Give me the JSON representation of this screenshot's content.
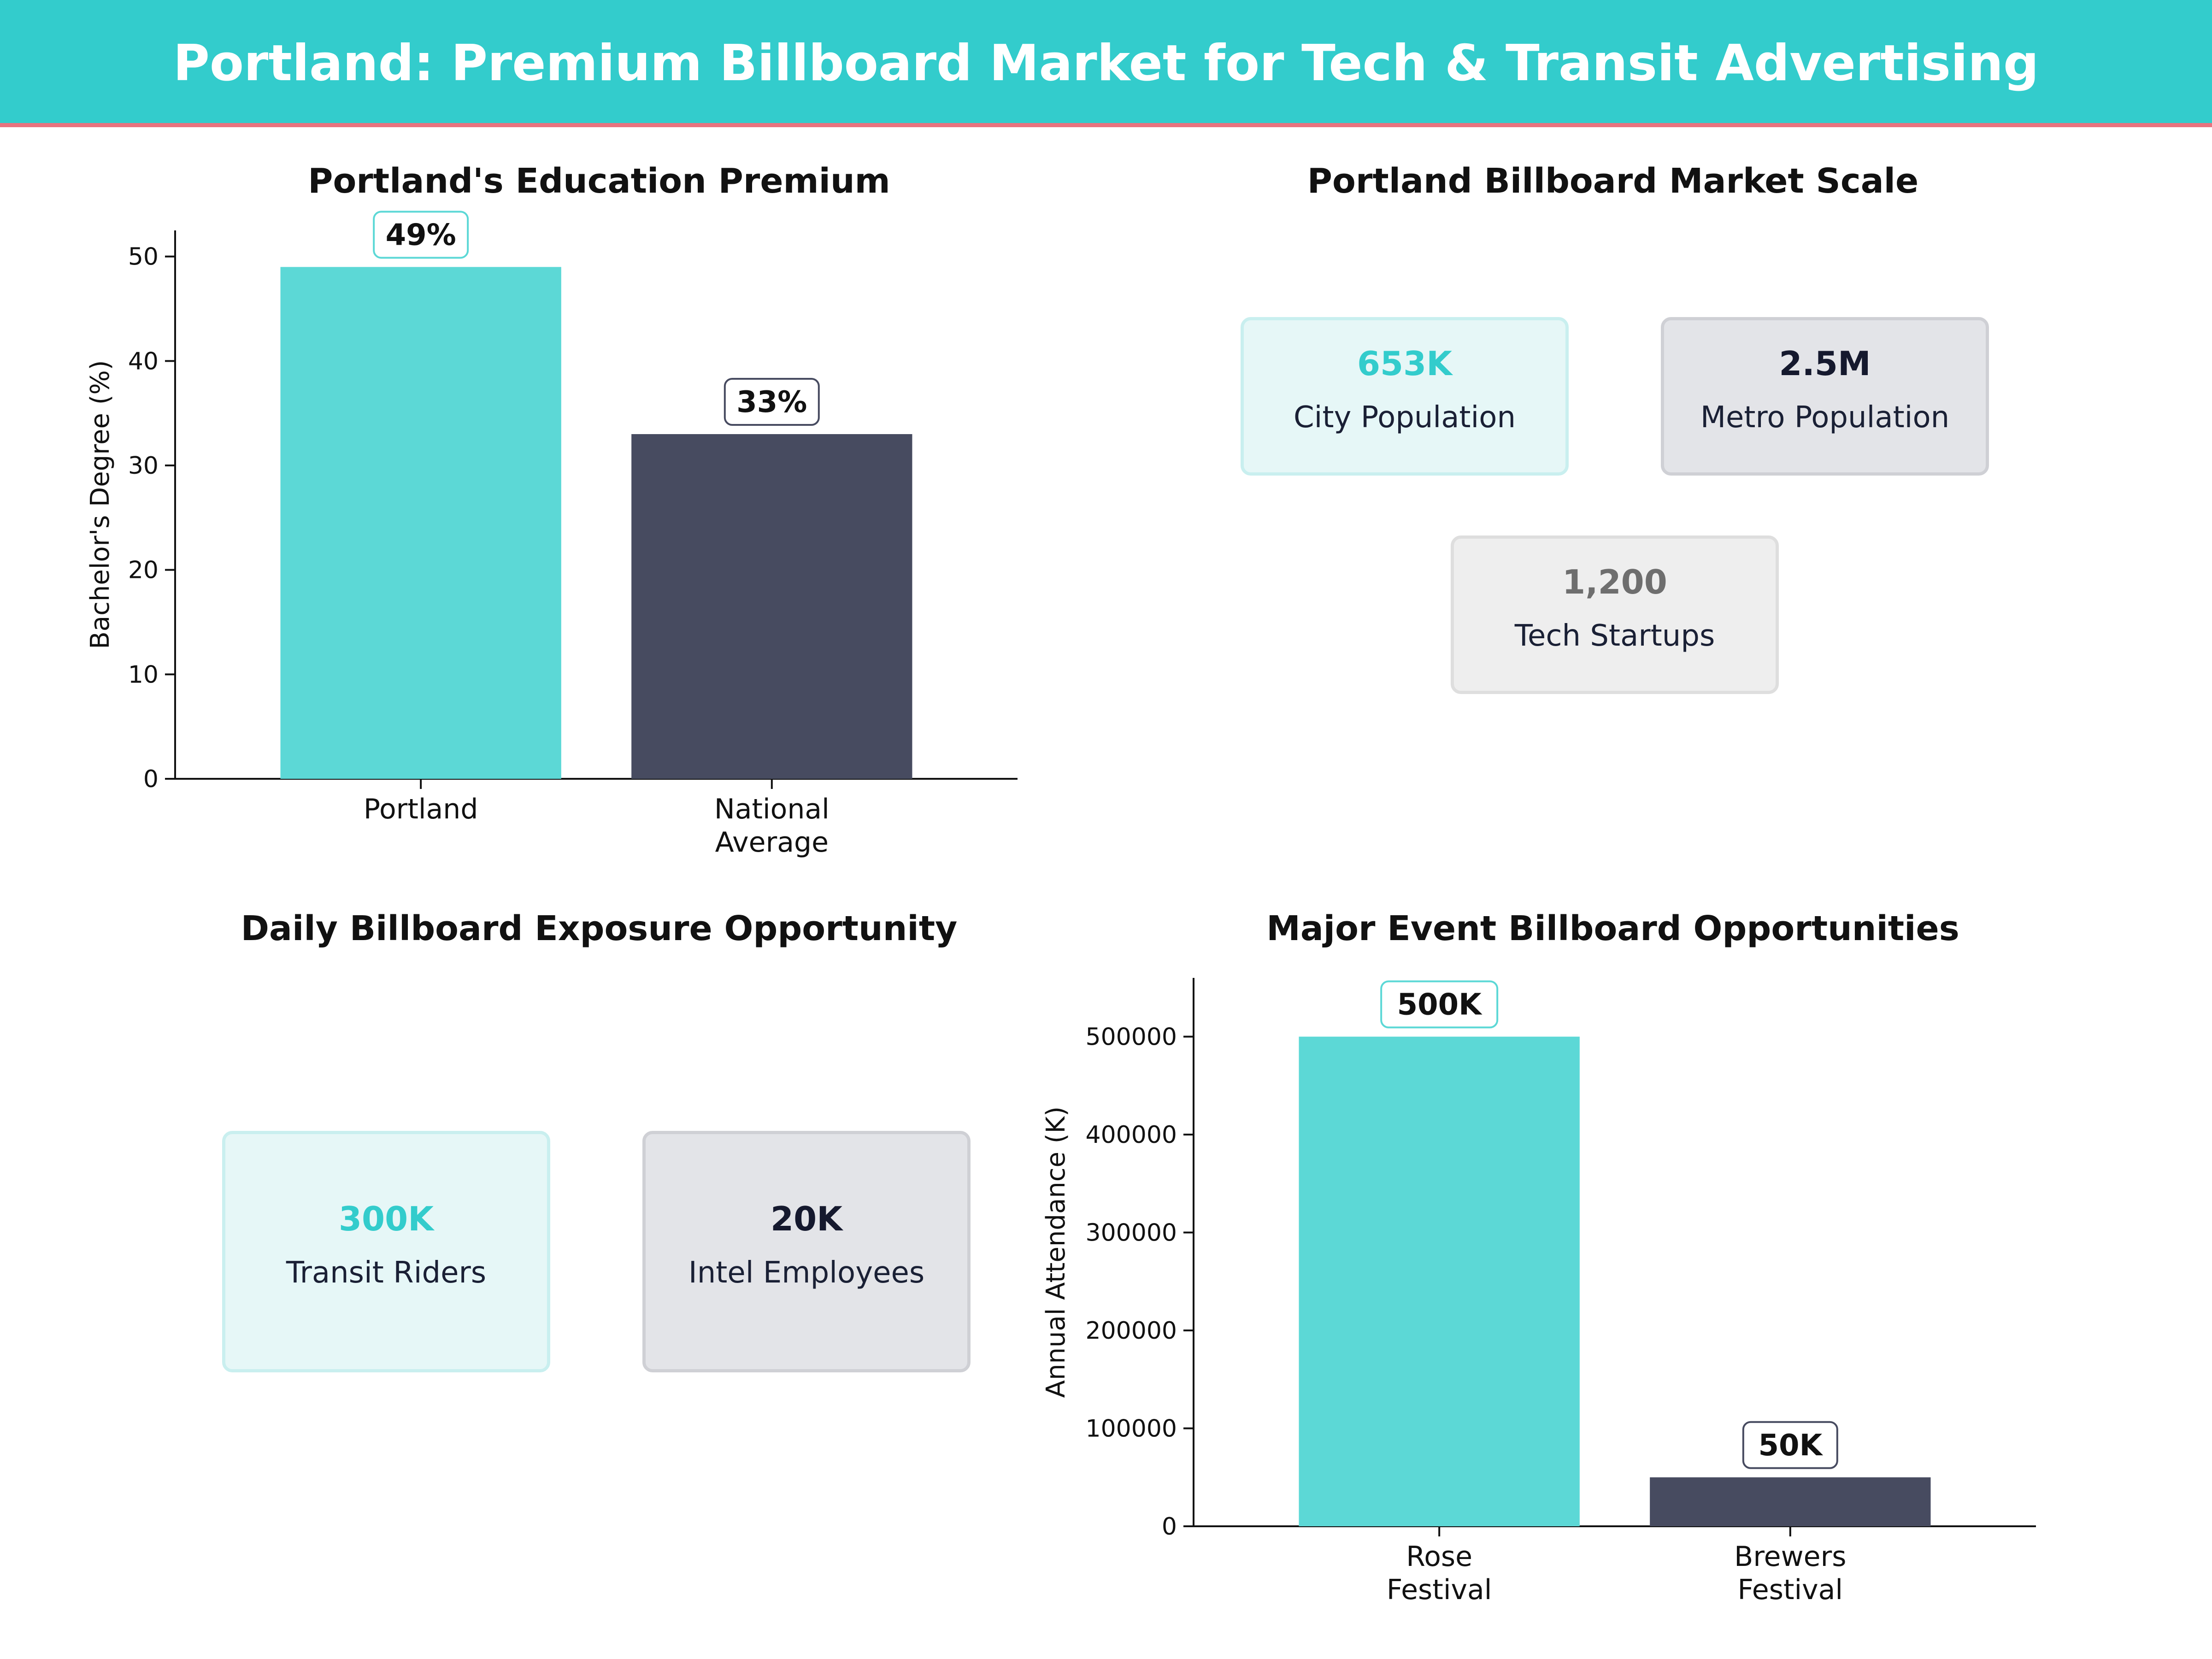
{
  "header": {
    "title": "Portland: Premium Billboard Market for Tech & Transit Advertising"
  },
  "colors": {
    "teal": "#5cd8d6",
    "navy": "#474b60",
    "header_bg": "#33cccc",
    "accent_line": "#e8737f"
  },
  "chart_data": [
    {
      "type": "bar",
      "title": "Portland's Education Premium",
      "categories": [
        "Portland",
        "National\nAverage"
      ],
      "values": [
        49,
        33
      ],
      "data_labels": [
        "49%",
        "33%"
      ],
      "ylabel": "Bachelor's Degree (%)",
      "ylim": [
        0,
        52.5
      ],
      "yticks": [
        0,
        10,
        20,
        30,
        40,
        50
      ],
      "bar_colors": [
        "#5cd8d6",
        "#474b60"
      ]
    },
    {
      "type": "bar",
      "title": "Major Event Billboard Opportunities",
      "categories": [
        "Rose\nFestival",
        "Brewers\nFestival"
      ],
      "values": [
        500000,
        50000
      ],
      "data_labels": [
        "500K",
        "50K"
      ],
      "ylabel": "Annual Attendance (K)",
      "ylim": [
        0,
        560000
      ],
      "yticks": [
        0,
        100000,
        200000,
        300000,
        400000,
        500000
      ],
      "bar_colors": [
        "#5cd8d6",
        "#474b60"
      ]
    }
  ],
  "market_scale": {
    "title": "Portland Billboard Market Scale",
    "cards": [
      {
        "value": "653K",
        "label": "City Population"
      },
      {
        "value": "2.5M",
        "label": "Metro Population"
      },
      {
        "value": "1,200",
        "label": "Tech Startups"
      }
    ]
  },
  "exposure": {
    "title": "Daily Billboard Exposure Opportunity",
    "cards": [
      {
        "value": "300K",
        "label": "Transit Riders"
      },
      {
        "value": "20K",
        "label": "Intel Employees"
      }
    ]
  }
}
